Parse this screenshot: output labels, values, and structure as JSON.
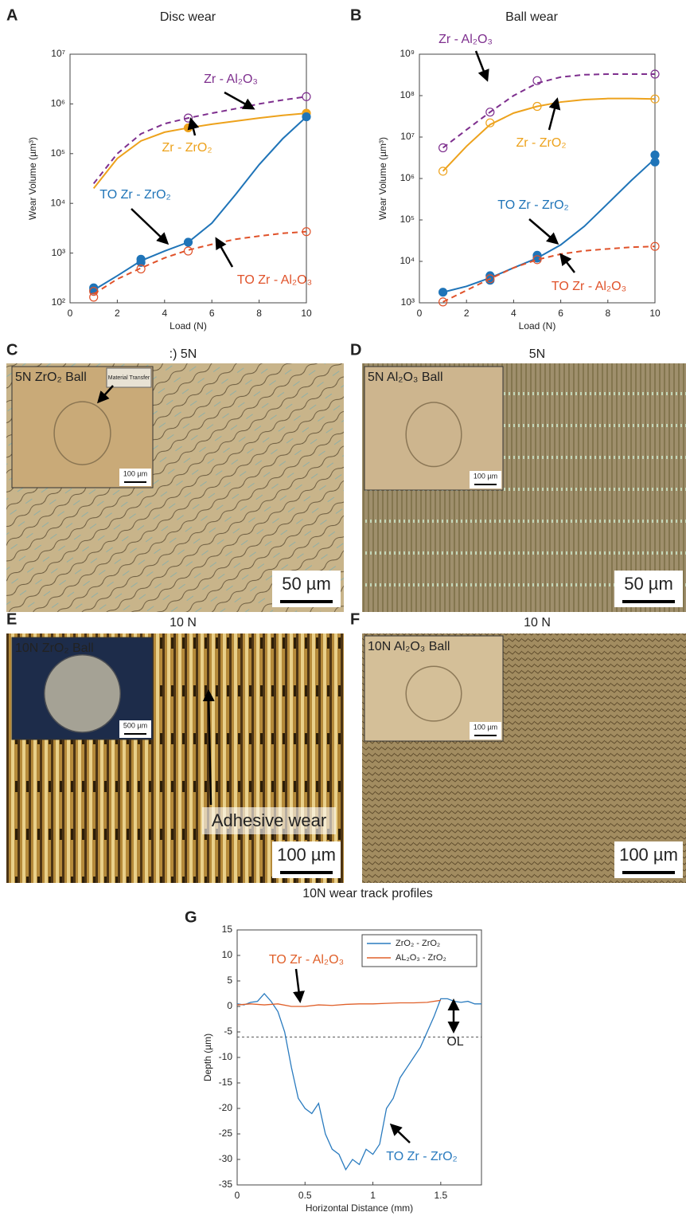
{
  "chart_data": [
    {
      "type": "scatter",
      "panel": "A",
      "title": "Disc wear",
      "x_label": "Load (N)",
      "y_label": "Wear Volume (µm³)",
      "xlim": [
        0,
        10
      ],
      "xticks": [
        0,
        2,
        4,
        6,
        8,
        10
      ],
      "ylim": [
        100,
        10000000
      ],
      "yticks": [
        {
          "value": 100,
          "label": "10²"
        },
        {
          "value": 1000,
          "label": "10³"
        },
        {
          "value": 10000,
          "label": "10⁴"
        },
        {
          "value": 100000,
          "label": "10⁵"
        },
        {
          "value": 1000000,
          "label": "10⁶"
        },
        {
          "value": 10000000,
          "label": "10⁷"
        }
      ],
      "log_scale": true,
      "grid": false,
      "fit_x": [
        1,
        2,
        3,
        4,
        5,
        6,
        7,
        8,
        9,
        10
      ],
      "series": [
        {
          "name": "Zr - Al₂O₃",
          "color": "#7e2f8e",
          "marker": "open",
          "line_style": "dashed",
          "x": [
            5,
            10
          ],
          "values": [
            520000,
            1400000
          ],
          "fit": [
            25000,
            100000,
            250000,
            400000,
            520000,
            650000,
            800000,
            1000000,
            1200000,
            1400000
          ]
        },
        {
          "name": "Zr - ZrO₂",
          "color": "#eda21c",
          "marker": "filled",
          "line_style": "solid",
          "x": [
            5,
            10
          ],
          "values": [
            330000,
            650000
          ],
          "fit": [
            20000,
            80000,
            180000,
            270000,
            330000,
            390000,
            450000,
            520000,
            590000,
            650000
          ]
        },
        {
          "name": "TO Zr - ZrO₂",
          "color": "#1f74b8",
          "marker": "filled",
          "line_style": "solid",
          "x": [
            1,
            1,
            3,
            3,
            5,
            10
          ],
          "values": [
            200,
            180,
            750,
            650,
            1650,
            550000
          ],
          "fit": [
            180,
            350,
            700,
            1100,
            1650,
            4000,
            15000,
            60000,
            200000,
            550000
          ]
        },
        {
          "name": "TO Zr - Al₂O₃",
          "color": "#e0522a",
          "marker": "open",
          "line_style": "dashed",
          "x": [
            1,
            1,
            3,
            5,
            10
          ],
          "values": [
            130,
            170,
            480,
            1100,
            2700
          ],
          "fit": [
            150,
            300,
            500,
            800,
            1150,
            1500,
            1900,
            2200,
            2500,
            2700
          ]
        }
      ]
    },
    {
      "type": "scatter",
      "panel": "B",
      "title": "Ball wear",
      "x_label": "Load (N)",
      "y_label": "Wear Volume (µm³)",
      "xlim": [
        0,
        10
      ],
      "xticks": [
        0,
        2,
        4,
        6,
        8,
        10
      ],
      "ylim": [
        1000,
        1000000000
      ],
      "yticks": [
        {
          "value": 1000,
          "label": "10³"
        },
        {
          "value": 10000,
          "label": "10⁴"
        },
        {
          "value": 100000,
          "label": "10⁵"
        },
        {
          "value": 1000000,
          "label": "10⁶"
        },
        {
          "value": 10000000,
          "label": "10⁷"
        },
        {
          "value": 100000000,
          "label": "10⁸"
        },
        {
          "value": 1000000000,
          "label": "10⁹"
        }
      ],
      "log_scale": true,
      "grid": false,
      "fit_x": [
        1,
        2,
        3,
        4,
        5,
        6,
        7,
        8,
        9,
        10
      ],
      "series": [
        {
          "name": "Zr - Al₂O₃",
          "color": "#7e2f8e",
          "marker": "open",
          "line_style": "dashed",
          "x": [
            1,
            3,
            5,
            10
          ],
          "values": [
            5500000,
            40000000,
            230000000,
            330000000
          ],
          "fit": [
            5500000,
            15000000,
            40000000,
            100000000,
            200000000,
            280000000,
            320000000,
            330000000,
            330000000,
            330000000
          ]
        },
        {
          "name": "Zr - ZrO₂",
          "color": "#eda21c",
          "marker": "open",
          "line_style": "solid",
          "x": [
            1,
            3,
            5,
            10
          ],
          "values": [
            1500000,
            22000000,
            55000000,
            83000000
          ],
          "fit": [
            1500000,
            6000000,
            20000000,
            38000000,
            55000000,
            70000000,
            80000000,
            85000000,
            85000000,
            83000000
          ]
        },
        {
          "name": "TO Zr - ZrO₂",
          "color": "#1f74b8",
          "marker": "filled",
          "line_style": "solid",
          "x": [
            1,
            3,
            3,
            5,
            5,
            10,
            10
          ],
          "values": [
            1800,
            4500,
            3500,
            14000,
            12000,
            3700000,
            2500000
          ],
          "fit": [
            1800,
            2500,
            4000,
            7000,
            12000,
            25000,
            70000,
            250000,
            900000,
            3000000
          ]
        },
        {
          "name": "TO Zr - Al₂O₃",
          "color": "#e0522a",
          "marker": "open",
          "line_style": "dashed",
          "x": [
            1,
            3,
            5,
            10
          ],
          "values": [
            1050,
            3800,
            11000,
            23000
          ],
          "fit": [
            1050,
            2000,
            3800,
            7000,
            11000,
            15000,
            18000,
            20000,
            22000,
            23000
          ]
        }
      ]
    },
    {
      "type": "line",
      "panel": "G",
      "title": "10N wear track profiles",
      "x_label": "Horizontal Distance (mm)",
      "y_label": "Depth (µm)",
      "xlim": [
        0,
        1.8
      ],
      "xticks": [
        0,
        0.5,
        1,
        1.5
      ],
      "ylim": [
        -35,
        15
      ],
      "yticks": [
        -35,
        -30,
        -25,
        -20,
        -15,
        -10,
        -5,
        0,
        5,
        10,
        15
      ],
      "grid": false,
      "legend": "upper right",
      "reference_line": -6,
      "annotations": [
        "TO Zr - Al₂O₃",
        "TO Zr - ZrO₂",
        "OL"
      ],
      "series": [
        {
          "name": "ZrO₂ - ZrO₂",
          "color": "#2a7bbf",
          "x": [
            0,
            0.05,
            0.1,
            0.15,
            0.2,
            0.25,
            0.3,
            0.35,
            0.4,
            0.45,
            0.5,
            0.55,
            0.6,
            0.65,
            0.7,
            0.75,
            0.8,
            0.85,
            0.9,
            0.95,
            1.0,
            1.05,
            1.1,
            1.15,
            1.2,
            1.25,
            1.3,
            1.35,
            1.4,
            1.45,
            1.5,
            1.55,
            1.6,
            1.65,
            1.7,
            1.75,
            1.8
          ],
          "values": [
            0.5,
            0.3,
            0.8,
            1,
            2.5,
            1,
            -1,
            -5,
            -12,
            -18,
            -20,
            -21,
            -19,
            -25,
            -28,
            -29,
            -32,
            -30,
            -31,
            -28,
            -29,
            -27,
            -20,
            -18,
            -14,
            -12,
            -10,
            -8,
            -5,
            -2,
            1.5,
            1.5,
            1,
            0.8,
            1,
            0.5,
            0.5
          ]
        },
        {
          "name": "AL₂O₃ - ZrO₂",
          "color": "#e0602a",
          "x": [
            0,
            0.1,
            0.2,
            0.3,
            0.4,
            0.5,
            0.6,
            0.7,
            0.8,
            0.9,
            1.0,
            1.1,
            1.2,
            1.3,
            1.4,
            1.5
          ],
          "values": [
            0.3,
            0.5,
            0.3,
            0.5,
            0,
            0,
            0.3,
            0.2,
            0.4,
            0.5,
            0.5,
            0.6,
            0.7,
            0.7,
            0.8,
            1.2
          ]
        }
      ]
    }
  ],
  "micrographs": [
    {
      "panel": "C",
      "title": ":) 5N",
      "inset_label": "5N ZrO₂ Ball",
      "inset_note": "Material Transfer",
      "inset_scale": "100 µm",
      "scale": "50 µm"
    },
    {
      "panel": "D",
      "title": "5N",
      "inset_label": "5N Al₂O₃ Ball",
      "inset_scale": "100 µm",
      "scale": "50 µm"
    },
    {
      "panel": "E",
      "title": "10 N",
      "inset_label": "10N ZrO₂ Ball",
      "inset_scale": "500 µm",
      "scale": "100 µm",
      "annotation": "Adhesive wear"
    },
    {
      "panel": "F",
      "title": "10 N",
      "inset_label": "10N Al₂O₃ Ball",
      "inset_scale": "100 µm",
      "scale": "100 µm"
    }
  ]
}
